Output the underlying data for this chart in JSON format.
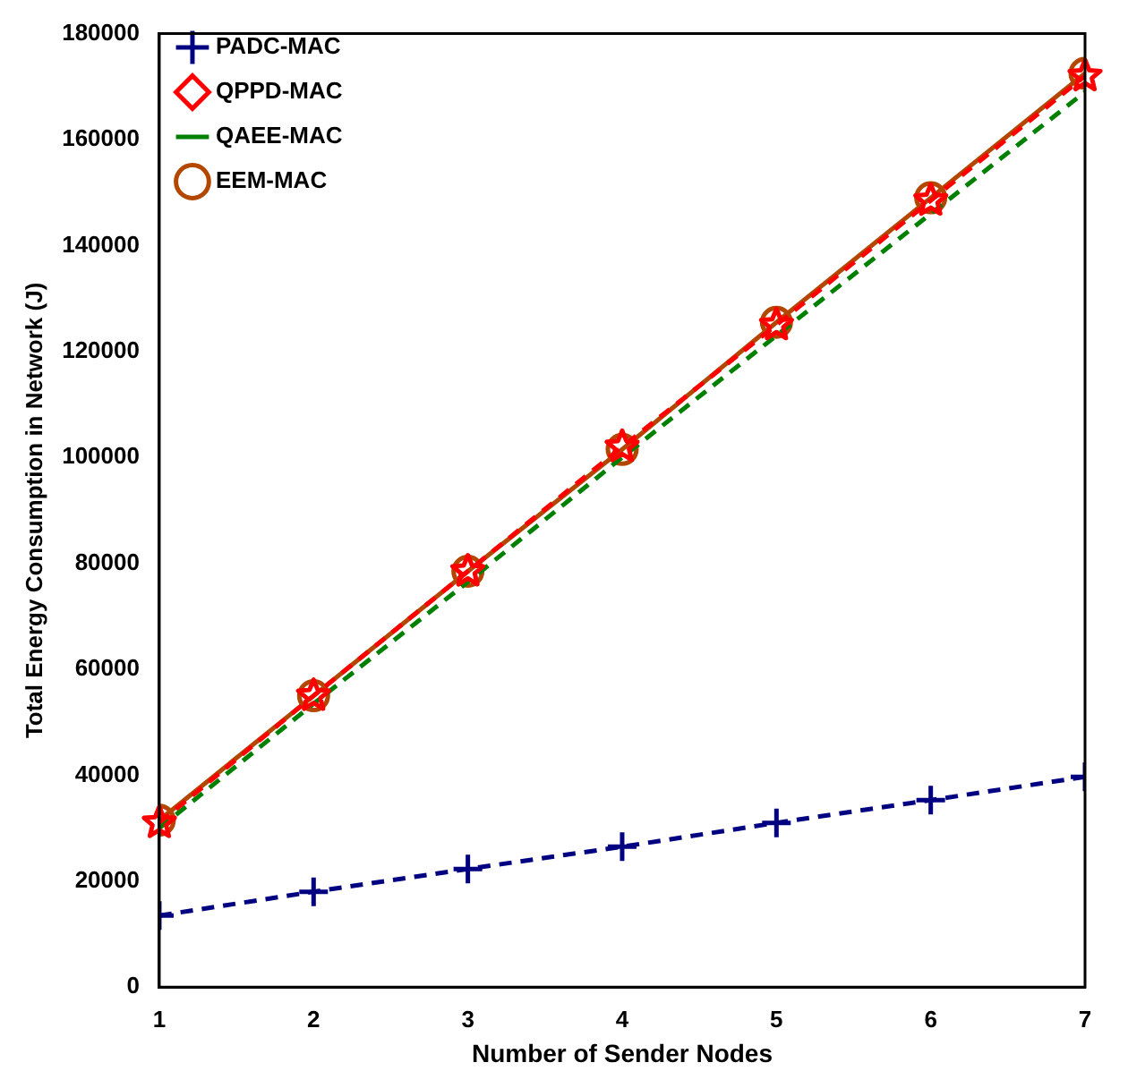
{
  "chart_data": {
    "type": "line",
    "xlabel": "Number of Sender Nodes",
    "ylabel": "Total Energy Consumption in Network (J)",
    "x": [
      1,
      2,
      3,
      4,
      5,
      6,
      7
    ],
    "xlim": [
      1,
      7
    ],
    "xticks": [
      1,
      2,
      3,
      4,
      5,
      6,
      7
    ],
    "ylim": [
      0,
      180000
    ],
    "yticks": [
      0,
      20000,
      40000,
      60000,
      80000,
      100000,
      120000,
      140000,
      160000,
      180000
    ],
    "grid": false,
    "legend": "top left",
    "series": [
      {
        "name": "PADC-MAC",
        "color": "#000080",
        "marker": "cross",
        "line_style": "dashed",
        "values": [
          13500,
          18000,
          22300,
          26500,
          31000,
          35300,
          39700
        ]
      },
      {
        "name": "QPPD-MAC",
        "color": "#ff0000",
        "marker": "star",
        "line_style": "dashed",
        "values": [
          31000,
          55000,
          78500,
          102000,
          125000,
          148500,
          172000
        ]
      },
      {
        "name": "QAEE-MAC",
        "color": "#008000",
        "marker": "none",
        "line_style": "dashed",
        "values": [
          30000,
          53500,
          76500,
          100000,
          123000,
          146000,
          169000
        ]
      },
      {
        "name": "EEM-MAC",
        "color": "#b34700",
        "marker": "circle",
        "line_style": "solid",
        "values": [
          31500,
          55000,
          78500,
          101500,
          125500,
          149000,
          172500
        ]
      }
    ]
  }
}
